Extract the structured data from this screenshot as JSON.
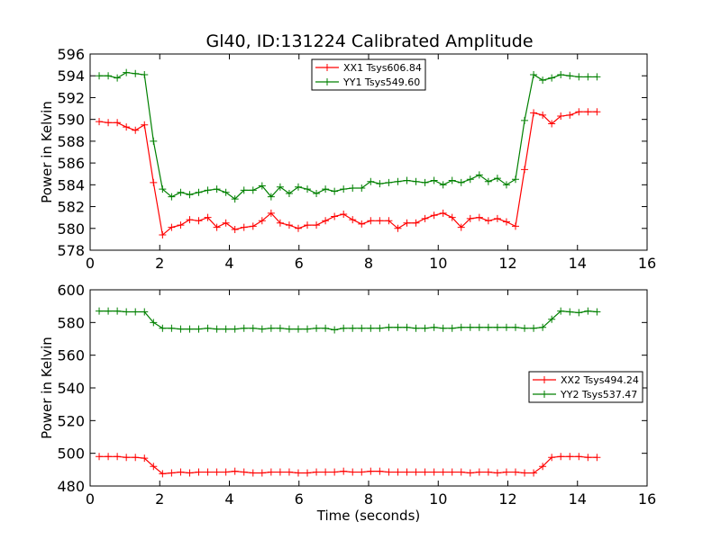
{
  "figure_title": "Gl40, ID:131224 Calibrated Amplitude",
  "chart_data": [
    {
      "type": "line",
      "title": "Gl40, ID:131224 Calibrated Amplitude",
      "xlabel": "",
      "ylabel": "Power in Kelvin",
      "xlim": [
        0,
        16
      ],
      "ylim": [
        578,
        596
      ],
      "xticks": [
        0,
        2,
        4,
        6,
        8,
        10,
        12,
        14,
        16
      ],
      "yticks": [
        578,
        580,
        582,
        584,
        586,
        588,
        590,
        592,
        594,
        596
      ],
      "grid": false,
      "legend_position": "top-center",
      "x": [
        0.26,
        0.52,
        0.78,
        1.04,
        1.3,
        1.56,
        1.82,
        2.08,
        2.34,
        2.6,
        2.86,
        3.12,
        3.38,
        3.64,
        3.9,
        4.16,
        4.42,
        4.68,
        4.94,
        5.2,
        5.46,
        5.72,
        5.98,
        6.24,
        6.5,
        6.76,
        7.02,
        7.28,
        7.54,
        7.8,
        8.06,
        8.32,
        8.58,
        8.84,
        9.1,
        9.36,
        9.62,
        9.88,
        10.14,
        10.4,
        10.66,
        10.92,
        11.18,
        11.44,
        11.7,
        11.96,
        12.22,
        12.48,
        12.74,
        13.0,
        13.26,
        13.52,
        13.78,
        14.04,
        14.3,
        14.56
      ],
      "series": [
        {
          "name": "XX1 Tsys606.84",
          "color": "#ff0000",
          "values": [
            589.8,
            589.7,
            589.7,
            589.3,
            589.0,
            589.5,
            584.2,
            579.4,
            580.1,
            580.3,
            580.8,
            580.7,
            581.0,
            580.1,
            580.5,
            579.9,
            580.1,
            580.2,
            580.7,
            581.4,
            580.5,
            580.3,
            580.0,
            580.3,
            580.3,
            580.7,
            581.1,
            581.3,
            580.8,
            580.4,
            580.7,
            580.7,
            580.7,
            580.0,
            580.5,
            580.5,
            580.9,
            581.2,
            581.4,
            581.0,
            580.1,
            580.9,
            581.0,
            580.7,
            580.9,
            580.6,
            580.2,
            585.4,
            590.6,
            590.4,
            589.6,
            590.3,
            590.4,
            590.7,
            590.7,
            590.7
          ]
        },
        {
          "name": "YY1 Tsys549.60",
          "color": "#008000",
          "values": [
            594.0,
            594.0,
            593.8,
            594.3,
            594.2,
            594.1,
            588.0,
            583.6,
            582.9,
            583.3,
            583.1,
            583.3,
            583.5,
            583.6,
            583.3,
            582.7,
            583.5,
            583.5,
            583.9,
            582.9,
            583.8,
            583.2,
            583.8,
            583.6,
            583.2,
            583.6,
            583.4,
            583.6,
            583.7,
            583.7,
            584.3,
            584.1,
            584.2,
            584.3,
            584.4,
            584.3,
            584.2,
            584.4,
            584.0,
            584.4,
            584.2,
            584.5,
            584.9,
            584.3,
            584.6,
            584.0,
            584.5,
            589.9,
            594.1,
            593.6,
            593.8,
            594.1,
            594.0,
            593.9,
            593.9,
            593.9
          ]
        }
      ]
    },
    {
      "type": "line",
      "title": "",
      "xlabel": "Time (seconds)",
      "ylabel": "Power in Kelvin",
      "xlim": [
        0,
        16
      ],
      "ylim": [
        480,
        600
      ],
      "xticks": [
        0,
        2,
        4,
        6,
        8,
        10,
        12,
        14,
        16
      ],
      "yticks": [
        480,
        500,
        520,
        540,
        560,
        580,
        600
      ],
      "grid": false,
      "legend_position": "center-right",
      "x": [
        0.26,
        0.52,
        0.78,
        1.04,
        1.3,
        1.56,
        1.82,
        2.08,
        2.34,
        2.6,
        2.86,
        3.12,
        3.38,
        3.64,
        3.9,
        4.16,
        4.42,
        4.68,
        4.94,
        5.2,
        5.46,
        5.72,
        5.98,
        6.24,
        6.5,
        6.76,
        7.02,
        7.28,
        7.54,
        7.8,
        8.06,
        8.32,
        8.58,
        8.84,
        9.1,
        9.36,
        9.62,
        9.88,
        10.14,
        10.4,
        10.66,
        10.92,
        11.18,
        11.44,
        11.7,
        11.96,
        12.22,
        12.48,
        12.74,
        13.0,
        13.26,
        13.52,
        13.78,
        14.04,
        14.3,
        14.56
      ],
      "series": [
        {
          "name": "XX2 Tsys494.24",
          "color": "#ff0000",
          "values": [
            498,
            498,
            498,
            497.5,
            497.5,
            497,
            492,
            487.5,
            488,
            488.5,
            488,
            488.5,
            488.5,
            488.5,
            488.5,
            489,
            488.5,
            488,
            488,
            488.5,
            488.5,
            488.5,
            488,
            488,
            488.5,
            488.5,
            488.5,
            489,
            488.5,
            488.5,
            489,
            489,
            488.5,
            488.5,
            488.5,
            488.5,
            488.5,
            488.5,
            488.5,
            488.5,
            488.5,
            488,
            488.5,
            488.5,
            488,
            488.5,
            488.5,
            488,
            488,
            492,
            497.5,
            498,
            498,
            498,
            497.5,
            497.5
          ]
        },
        {
          "name": "YY2 Tsys537.47",
          "color": "#008000",
          "values": [
            587,
            587,
            587,
            586.5,
            586.5,
            586.5,
            580,
            576.5,
            576.5,
            576,
            576,
            576,
            576.5,
            576,
            576,
            576,
            576.5,
            576.5,
            576,
            576.5,
            576.5,
            576,
            576,
            576,
            576.5,
            576.5,
            575.5,
            576.5,
            576.5,
            576.5,
            576.5,
            576.5,
            577,
            577,
            577,
            576.5,
            576.5,
            577,
            576.5,
            576.5,
            577,
            577,
            577,
            577,
            577,
            577,
            577,
            576.5,
            576.5,
            577,
            582,
            587,
            586.5,
            586,
            587,
            586.5
          ]
        }
      ]
    }
  ]
}
